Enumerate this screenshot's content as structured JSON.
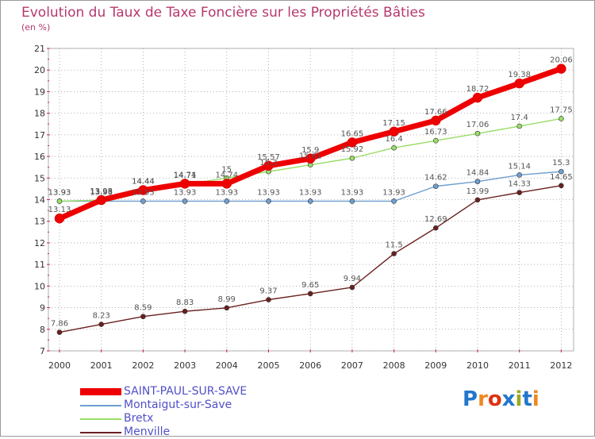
{
  "colors": {
    "saint_paul": "#ee0000",
    "montaigut": "#6f9fcf",
    "bretx": "#99dd66",
    "menville": "#6a2020",
    "grid": "#a0a0a0",
    "title": "#b5386e"
  },
  "brand": {
    "letters": [
      "P",
      "r",
      "o",
      "x",
      "i",
      "t",
      "i"
    ],
    "colors": [
      "#2277cc",
      "#ee8822",
      "#dd3311",
      "#2277cc",
      "#99aa22",
      "#2277cc",
      "#ee8822"
    ]
  },
  "chart_data": {
    "type": "line",
    "title": "Evolution du Taux de Taxe Foncière sur les Propriétés Bâties",
    "ylabel": "(en %)",
    "xlabel": "",
    "ylim": [
      7,
      21
    ],
    "yticks": [
      "7",
      "8",
      "9",
      "10",
      "11",
      "12",
      "13",
      "14",
      "15",
      "16",
      "17",
      "18",
      "19",
      "20",
      "21"
    ],
    "categories": [
      "2000",
      "2001",
      "2002",
      "2003",
      "2004",
      "2005",
      "2006",
      "2007",
      "2008",
      "2009",
      "2010",
      "2011",
      "2012"
    ],
    "grid": true,
    "series": [
      {
        "name": "Menville",
        "color": "#6a2020",
        "values": [
          7.86,
          8.23,
          8.59,
          8.83,
          8.99,
          9.37,
          9.65,
          9.94,
          11.5,
          12.69,
          13.99,
          14.33,
          14.65
        ],
        "labels": [
          "7.86",
          "8.23",
          "8.59",
          "8.83",
          "8.99",
          "9.37",
          "9.65",
          "9.94",
          "11.5",
          "12.69",
          "13.99",
          "14.33",
          "14.65"
        ]
      },
      {
        "name": "Montaigut-sur-Save",
        "color": "#6f9fcf",
        "values": [
          13.93,
          13.93,
          13.93,
          13.93,
          13.93,
          13.93,
          13.93,
          13.93,
          13.93,
          14.62,
          14.84,
          15.14,
          15.3
        ],
        "labels": [
          "13.93",
          "13.93",
          "13.93",
          "13.93",
          "13.93",
          "13.93",
          "13.93",
          "13.93",
          "13.93",
          "14.62",
          "14.84",
          "15.14",
          "15.3"
        ]
      },
      {
        "name": "Bretx",
        "color": "#99dd66",
        "values": [
          13.93,
          13.98,
          14.44,
          14.71,
          15,
          15.3,
          15.61,
          15.92,
          16.4,
          16.73,
          17.06,
          17.4,
          17.75
        ],
        "labels": [
          "13.93",
          "13.98",
          "14.44",
          "14.71",
          "15",
          "15.3",
          "15.61",
          "15.92",
          "16.4",
          "16.73",
          "17.06",
          "17.4",
          "17.75"
        ]
      },
      {
        "name": "SAINT-PAUL-SUR-SAVE",
        "color": "#ee0000",
        "values": [
          13.13,
          13.98,
          14.44,
          14.74,
          14.74,
          15.57,
          15.9,
          16.65,
          17.15,
          17.66,
          18.72,
          19.38,
          20.06
        ],
        "labels": [
          "13.13",
          "13.98",
          "14.44",
          "14.74",
          "14.74",
          "15.57",
          "15.9",
          "16.65",
          "17.15",
          "17.66",
          "18.72",
          "19.38",
          "20.06"
        ]
      }
    ],
    "legend": [
      {
        "name": "SAINT-PAUL-SUR-SAVE",
        "color": "#ee0000",
        "thick": true
      },
      {
        "name": "Montaigut-sur-Save",
        "color": "#6f9fcf",
        "thick": false
      },
      {
        "name": "Bretx",
        "color": "#99dd66",
        "thick": false
      },
      {
        "name": "Menville",
        "color": "#6a2020",
        "thick": false
      }
    ]
  }
}
